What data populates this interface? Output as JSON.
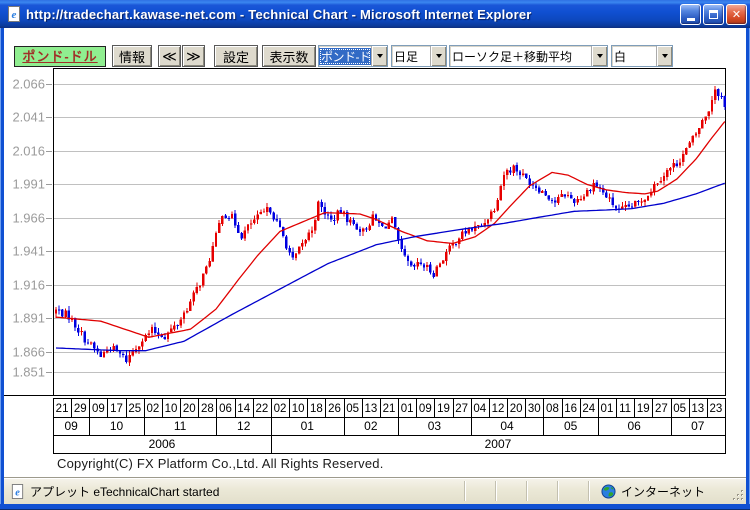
{
  "window": {
    "title": "http://tradechart.kawase-net.com - Technical Chart - Microsoft Internet Explorer",
    "controls": {
      "close": "✕"
    }
  },
  "toolbar": {
    "pair_label": "ポンド-ドル",
    "info_button": "情報",
    "prev_button": "≪",
    "next_button": "≫",
    "settings_button": "設定",
    "display_count_button": "表示数",
    "pair_select_value": "ポンド-ドル",
    "timeframe_select_value": "日足",
    "charttype_select_value": "ローソク足＋移動平均",
    "background_select_value": "白"
  },
  "copyright": "Copyright(C) FX Platform Co.,Ltd. All Rights Reserved.",
  "statusbar": {
    "left": "アプレット eTechnicalChart started",
    "right": "インターネット"
  },
  "chart_data": {
    "type": "candlestick",
    "pair": "ポンド-ドル (GBP/USD) 日足 ローソク足＋移動平均",
    "grid": true,
    "y_ticks": [
      2.066,
      2.041,
      2.016,
      1.991,
      1.966,
      1.941,
      1.916,
      1.891,
      1.866,
      1.851
    ],
    "y_range_plotted": [
      1.834,
      2.078
    ],
    "x_day_labels": [
      "21",
      "29",
      "09",
      "17",
      "25",
      "02",
      "10",
      "20",
      "28",
      "06",
      "14",
      "22",
      "02",
      "10",
      "18",
      "26",
      "05",
      "13",
      "21",
      "01",
      "09",
      "19",
      "27",
      "04",
      "12",
      "20",
      "30",
      "08",
      "16",
      "24",
      "01",
      "11",
      "19",
      "27",
      "05",
      "13",
      "23"
    ],
    "x_month_labels": [
      {
        "label": "09",
        "span": 2
      },
      {
        "label": "10",
        "span": 3
      },
      {
        "label": "11",
        "span": 4
      },
      {
        "label": "12",
        "span": 3
      },
      {
        "label": "01",
        "span": 4
      },
      {
        "label": "02",
        "span": 3
      },
      {
        "label": "03",
        "span": 4
      },
      {
        "label": "04",
        "span": 4
      },
      {
        "label": "05",
        "span": 3
      },
      {
        "label": "06",
        "span": 4
      },
      {
        "label": "07",
        "span": 3
      }
    ],
    "x_year_labels": [
      {
        "label": "2006",
        "span": 12
      },
      {
        "label": "2007",
        "span": 25
      }
    ],
    "candle_count": 210,
    "close_path": [
      [
        0,
        1.897
      ],
      [
        4,
        1.893
      ],
      [
        9,
        1.876
      ],
      [
        14,
        1.863
      ],
      [
        17,
        1.87
      ],
      [
        22,
        1.86
      ],
      [
        26,
        1.873
      ],
      [
        30,
        1.882
      ],
      [
        34,
        1.878
      ],
      [
        38,
        1.887
      ],
      [
        42,
        1.903
      ],
      [
        47,
        1.928
      ],
      [
        50,
        1.952
      ],
      [
        52,
        1.97
      ],
      [
        55,
        1.966
      ],
      [
        58,
        1.953
      ],
      [
        61,
        1.962
      ],
      [
        64,
        1.968
      ],
      [
        67,
        1.973
      ],
      [
        71,
        1.952
      ],
      [
        74,
        1.934
      ],
      [
        76,
        1.942
      ],
      [
        80,
        1.958
      ],
      [
        82,
        1.976
      ],
      [
        86,
        1.964
      ],
      [
        89,
        1.971
      ],
      [
        92,
        1.963
      ],
      [
        96,
        1.956
      ],
      [
        99,
        1.966
      ],
      [
        102,
        1.959
      ],
      [
        105,
        1.964
      ],
      [
        108,
        1.94
      ],
      [
        111,
        1.928
      ],
      [
        114,
        1.932
      ],
      [
        118,
        1.925
      ],
      [
        122,
        1.94
      ],
      [
        126,
        1.952
      ],
      [
        129,
        1.957
      ],
      [
        133,
        1.96
      ],
      [
        137,
        1.974
      ],
      [
        140,
        1.999
      ],
      [
        143,
        2.004
      ],
      [
        147,
        1.995
      ],
      [
        150,
        1.99
      ],
      [
        153,
        1.984
      ],
      [
        156,
        1.978
      ],
      [
        159,
        1.984
      ],
      [
        162,
        1.979
      ],
      [
        165,
        1.983
      ],
      [
        168,
        1.992
      ],
      [
        170,
        1.988
      ],
      [
        173,
        1.979
      ],
      [
        176,
        1.971
      ],
      [
        179,
        1.974
      ],
      [
        182,
        1.977
      ],
      [
        185,
        1.984
      ],
      [
        188,
        1.994
      ],
      [
        191,
        2.001
      ],
      [
        194,
        2.007
      ],
      [
        197,
        2.017
      ],
      [
        200,
        2.029
      ],
      [
        204,
        2.047
      ],
      [
        206,
        2.063
      ],
      [
        208,
        2.056
      ],
      [
        209,
        2.048
      ]
    ],
    "ma_short": [
      [
        0,
        1.892
      ],
      [
        14,
        1.889
      ],
      [
        29,
        1.877
      ],
      [
        42,
        1.883
      ],
      [
        50,
        1.898
      ],
      [
        57,
        1.92
      ],
      [
        63,
        1.938
      ],
      [
        70,
        1.956
      ],
      [
        76,
        1.962
      ],
      [
        84,
        1.97
      ],
      [
        95,
        1.969
      ],
      [
        100,
        1.965
      ],
      [
        108,
        1.956
      ],
      [
        116,
        1.949
      ],
      [
        124,
        1.947
      ],
      [
        131,
        1.952
      ],
      [
        137,
        1.962
      ],
      [
        142,
        1.975
      ],
      [
        148,
        1.99
      ],
      [
        155,
        2.0
      ],
      [
        160,
        1.998
      ],
      [
        166,
        1.991
      ],
      [
        172,
        1.987
      ],
      [
        178,
        1.985
      ],
      [
        184,
        1.984
      ],
      [
        188,
        1.986
      ],
      [
        194,
        1.995
      ],
      [
        200,
        2.01
      ],
      [
        205,
        2.026
      ],
      [
        209,
        2.038
      ]
    ],
    "ma_long": [
      [
        0,
        1.869
      ],
      [
        20,
        1.867
      ],
      [
        28,
        1.867
      ],
      [
        40,
        1.874
      ],
      [
        55,
        1.894
      ],
      [
        70,
        1.913
      ],
      [
        85,
        1.932
      ],
      [
        100,
        1.946
      ],
      [
        112,
        1.952
      ],
      [
        125,
        1.957
      ],
      [
        140,
        1.962
      ],
      [
        152,
        1.967
      ],
      [
        162,
        1.971
      ],
      [
        172,
        1.972
      ],
      [
        180,
        1.973
      ],
      [
        190,
        1.977
      ],
      [
        200,
        1.984
      ],
      [
        209,
        1.992
      ]
    ],
    "colors": {
      "up": "#e60000",
      "down": "#0000e0",
      "ma_short": "#e00000",
      "ma_long": "#0000cc",
      "grid": "#c0c0c0",
      "axis_label": "#9b9b9b",
      "axis_line": "#000000"
    }
  }
}
